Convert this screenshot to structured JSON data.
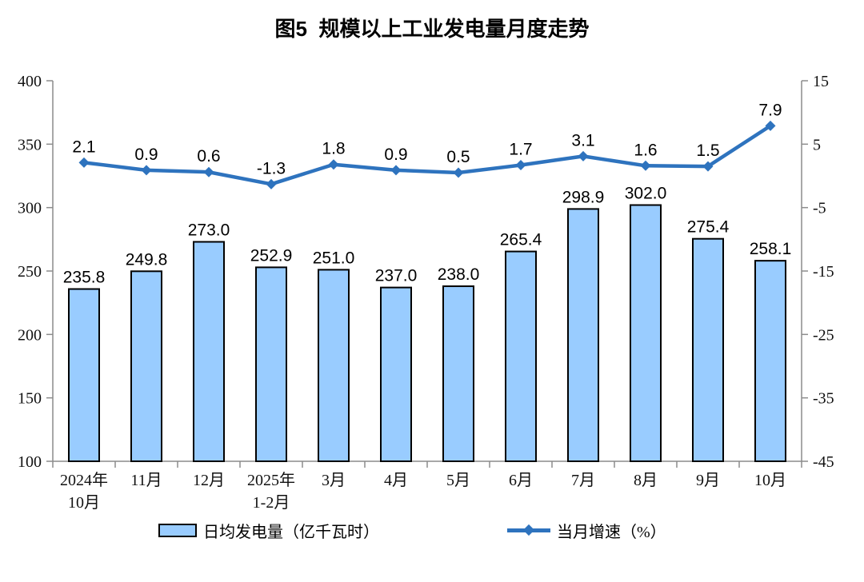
{
  "colors": {
    "bar_fill": "#99CCFF",
    "bar_border": "#000000",
    "line": "#2E73BE",
    "axis": "#8C8C8C",
    "text": "#000000",
    "background": "#FFFFFF"
  },
  "legend": [
    {
      "label": "日均发电量（亿千瓦时）",
      "type": "bar"
    },
    {
      "label": "当月增速（%）",
      "type": "line"
    }
  ],
  "chart_data": {
    "type": "bar+line combo",
    "title": "图5  规模以上工业发电量月度走势",
    "categories": [
      "2024年\n10月",
      "11月",
      "12月",
      "2025年\n1-2月",
      "3月",
      "4月",
      "5月",
      "6月",
      "7月",
      "8月",
      "9月",
      "10月"
    ],
    "series": [
      {
        "name": "日均发电量（亿千瓦时）",
        "type": "bar",
        "axis": "left",
        "values": [
          235.8,
          249.8,
          273.0,
          252.9,
          251.0,
          237.0,
          238.0,
          265.4,
          298.9,
          302.0,
          275.4,
          258.1
        ]
      },
      {
        "name": "当月增速（%）",
        "type": "line",
        "axis": "right",
        "marker": "diamond",
        "values": [
          2.1,
          0.9,
          0.6,
          -1.3,
          1.8,
          0.9,
          0.5,
          1.7,
          3.1,
          1.6,
          1.5,
          7.9
        ]
      }
    ],
    "left_axis": {
      "min": 100,
      "max": 400,
      "ticks": [
        400,
        350,
        300,
        250,
        200,
        150,
        100
      ]
    },
    "right_axis": {
      "min": -45,
      "max": 15,
      "ticks": [
        15,
        5,
        -5,
        -15,
        -25,
        -35,
        -45
      ]
    },
    "grid": false,
    "legend_position": "bottom",
    "data_labels": true
  }
}
